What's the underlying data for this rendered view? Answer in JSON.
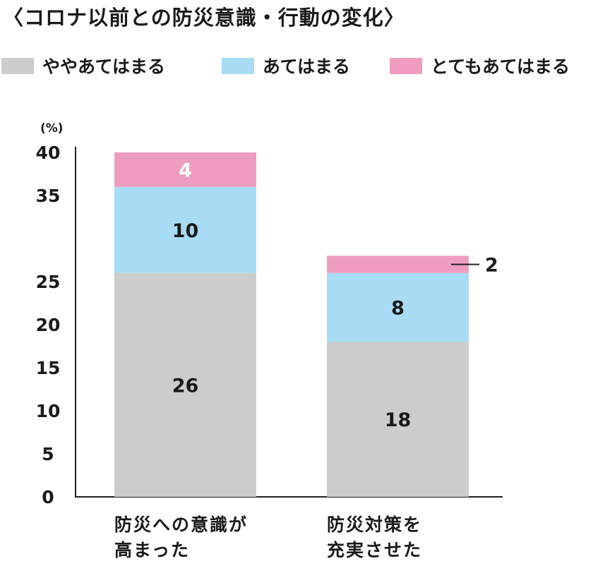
{
  "title": "〈コロナ以前との防災意識・行動の変化〉",
  "chart_data": {
    "type": "bar",
    "stacked": true,
    "unit": "(%)",
    "ylim": [
      0,
      40
    ],
    "yticks": [
      "0",
      "5",
      "10",
      "15",
      "20",
      "25",
      "35",
      "40"
    ],
    "categories": [
      [
        "防災への意識が",
        "高まった"
      ],
      [
        "防災対策を",
        "充実させた"
      ]
    ],
    "series": [
      {
        "name": "ややあてはまる",
        "color": "#cccccc",
        "values": [
          26,
          18
        ]
      },
      {
        "name": "あてはまる",
        "color": "#a8dcf4",
        "values": [
          10,
          8
        ]
      },
      {
        "name": "とてもあてはまる",
        "color": "#ee9dc0",
        "values": [
          4,
          2
        ]
      }
    ],
    "data_labels": [
      [
        "26",
        "18"
      ],
      [
        "10",
        "8"
      ],
      [
        "4",
        "2"
      ]
    ],
    "legend_position": "top",
    "grid": false
  }
}
